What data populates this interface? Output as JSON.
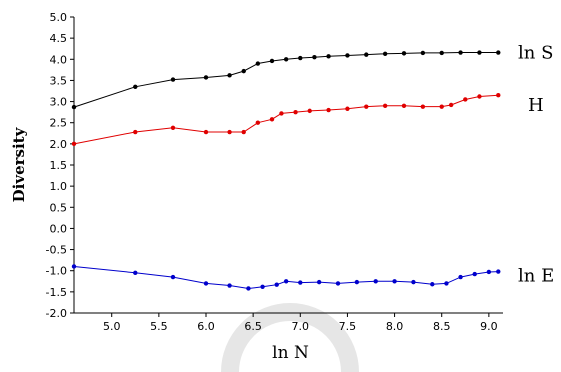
{
  "chart_data": {
    "type": "line",
    "xlabel": "ln N",
    "ylabel": "Diversity",
    "xlim": [
      4.6,
      9.15
    ],
    "ylim": [
      -2.0,
      5.0
    ],
    "xticks": [
      "5.0",
      "5.5",
      "6.0",
      "6.5",
      "7.0",
      "7.5",
      "8.0",
      "8.5",
      "9.0"
    ],
    "yticks": [
      "-2.0",
      "-1.5",
      "-1.0",
      "-0.5",
      "0.0",
      "0.5",
      "1.0",
      "1.5",
      "2.0",
      "2.5",
      "3.0",
      "3.5",
      "4.0",
      "4.5",
      "5.0"
    ],
    "grid": false,
    "series": [
      {
        "name": "ln S",
        "color": "#000000",
        "x": [
          4.6,
          5.25,
          5.65,
          6.0,
          6.25,
          6.4,
          6.55,
          6.7,
          6.85,
          7.0,
          7.15,
          7.3,
          7.5,
          7.7,
          7.9,
          8.1,
          8.3,
          8.5,
          8.7,
          8.9,
          9.1
        ],
        "y": [
          2.87,
          3.35,
          3.52,
          3.57,
          3.62,
          3.72,
          3.9,
          3.96,
          4.0,
          4.03,
          4.05,
          4.07,
          4.09,
          4.11,
          4.13,
          4.14,
          4.15,
          4.15,
          4.16,
          4.16,
          4.16
        ]
      },
      {
        "name": "H",
        "color": "#e00000",
        "x": [
          4.6,
          5.25,
          5.65,
          6.0,
          6.25,
          6.4,
          6.55,
          6.7,
          6.8,
          6.95,
          7.1,
          7.3,
          7.5,
          7.7,
          7.9,
          8.1,
          8.3,
          8.5,
          8.6,
          8.75,
          8.9,
          9.1
        ],
        "y": [
          2.0,
          2.28,
          2.38,
          2.28,
          2.28,
          2.28,
          2.5,
          2.58,
          2.72,
          2.75,
          2.78,
          2.8,
          2.83,
          2.88,
          2.9,
          2.9,
          2.88,
          2.88,
          2.92,
          3.05,
          3.12,
          3.15
        ]
      },
      {
        "name": "ln E",
        "color": "#0000cc",
        "x": [
          4.6,
          5.25,
          5.65,
          6.0,
          6.25,
          6.45,
          6.6,
          6.75,
          6.85,
          7.0,
          7.2,
          7.4,
          7.6,
          7.8,
          8.0,
          8.2,
          8.4,
          8.55,
          8.7,
          8.85,
          9.0,
          9.1
        ],
        "y": [
          -0.9,
          -1.05,
          -1.15,
          -1.3,
          -1.35,
          -1.42,
          -1.38,
          -1.33,
          -1.25,
          -1.28,
          -1.27,
          -1.3,
          -1.27,
          -1.25,
          -1.25,
          -1.27,
          -1.32,
          -1.3,
          -1.15,
          -1.08,
          -1.03,
          -1.02
        ]
      }
    ]
  }
}
